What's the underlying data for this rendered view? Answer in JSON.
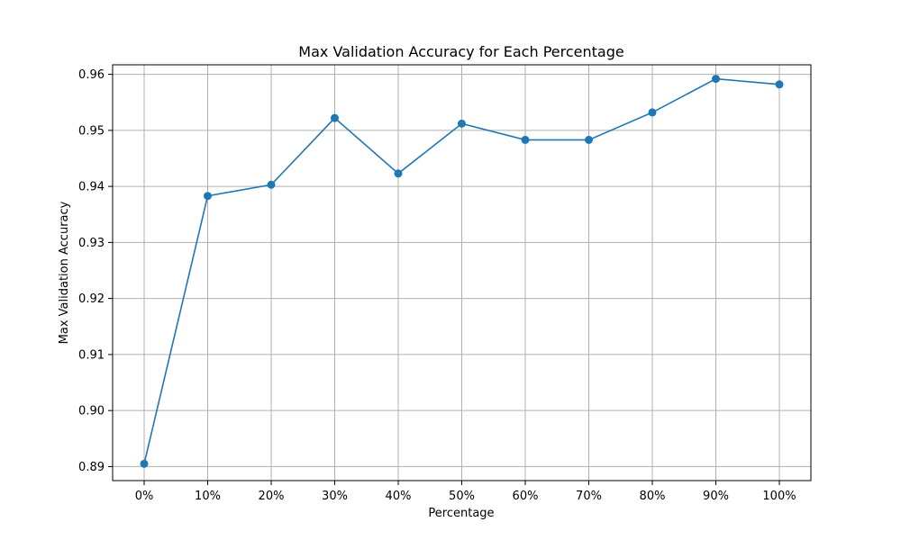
{
  "chart_data": {
    "type": "line",
    "title": "Max Validation Accuracy for Each Percentage",
    "xlabel": "Percentage",
    "ylabel": "Max Validation Accuracy",
    "categories": [
      "0%",
      "10%",
      "20%",
      "30%",
      "40%",
      "50%",
      "60%",
      "70%",
      "80%",
      "90%",
      "100%"
    ],
    "series": [
      {
        "values": [
          0.8905,
          0.9383,
          0.9403,
          0.9522,
          0.9423,
          0.9512,
          0.9483,
          0.9483,
          0.9532,
          0.9592,
          0.9582
        ],
        "color": "#1f77b4",
        "marker": "circle"
      }
    ],
    "yticks": [
      0.89,
      0.9,
      0.91,
      0.92,
      0.93,
      0.94,
      0.95,
      0.96
    ],
    "ytick_labels": [
      "0.89",
      "0.90",
      "0.91",
      "0.92",
      "0.93",
      "0.94",
      "0.95",
      "0.96"
    ],
    "ylim": [
      0.8875,
      0.9617
    ],
    "grid": true,
    "legend": "none"
  }
}
